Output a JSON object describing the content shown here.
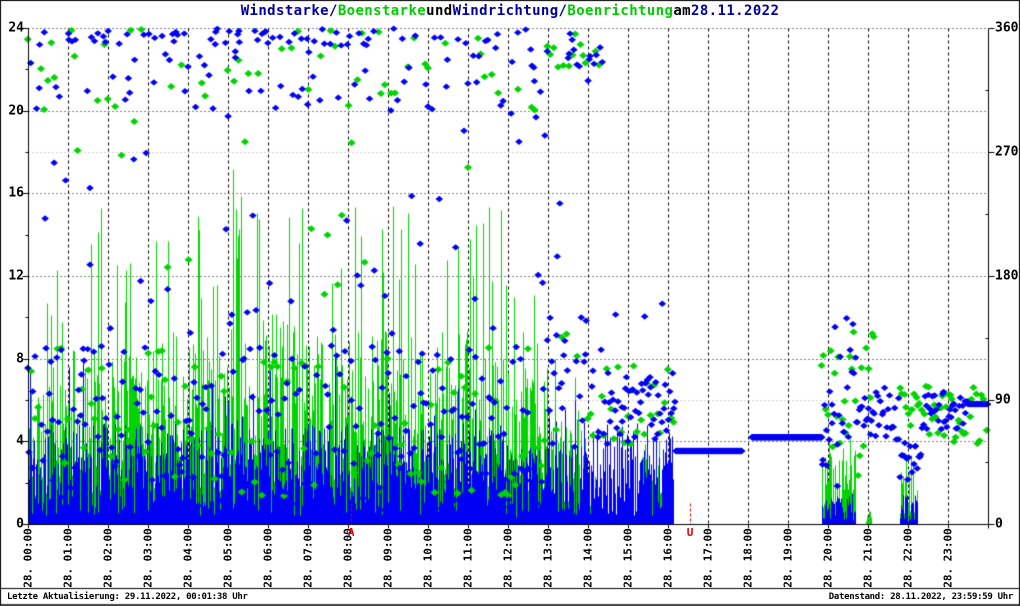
{
  "title": {
    "parts": [
      {
        "text": "Windstarke/",
        "color": "#0000a0"
      },
      {
        "text": "Boenstarke",
        "color": "#00cc00"
      },
      {
        "text": " und ",
        "color": "#000000"
      },
      {
        "text": "Windrichtung/",
        "color": "#0000a0"
      },
      {
        "text": "Boenrichtung",
        "color": "#00cc00"
      },
      {
        "text": " am ",
        "color": "#000000"
      },
      {
        "text": "28.11.2022",
        "color": "#0000a0"
      }
    ]
  },
  "footer": {
    "left": "Letzte Aktualisierung: 29.11.2022, 00:01:38 Uhr",
    "right": "Datenstand: 28.11.2022, 23:59:59 Uhr"
  },
  "markers": {
    "sunrise": {
      "label": "A",
      "time_hours": 8.08,
      "color": "#e00000"
    },
    "sunset": {
      "label": "U",
      "time_hours": 16.55,
      "color": "#e00000"
    }
  },
  "colors": {
    "wind_blue": "#0000f4",
    "gust_green": "#00d400",
    "grid_black": "#000000",
    "grid_gray": "#aaaaaa",
    "axis": "#000000",
    "red": "#e00000",
    "background": "#ffffff"
  },
  "chart_data": {
    "type": "composite",
    "date": "28.11.2022",
    "x_axis": {
      "range_hours": [
        0,
        24
      ],
      "tick_interval_hours": 1,
      "labels": [
        "28. 00:00",
        "28. 01:00",
        "28. 02:00",
        "28. 03:00",
        "28. 04:00",
        "28. 05:00",
        "28. 06:00",
        "28. 07:00",
        "28. 08:00",
        "28. 09:00",
        "28. 10:00",
        "28. 11:00",
        "28. 12:00",
        "28. 13:00",
        "28. 14:00",
        "28. 15:00",
        "28. 16:00",
        "28. 17:00",
        "28. 18:00",
        "28. 19:00",
        "28. 20:00",
        "28. 21:00",
        "28. 22:00",
        "28. 23:00"
      ]
    },
    "y_left": {
      "lim": [
        0,
        24
      ],
      "ticks": [
        0,
        4,
        8,
        12,
        16,
        20,
        24
      ],
      "minor_step": 2
    },
    "y_right": {
      "lim": [
        0,
        360
      ],
      "ticks": [
        0,
        90,
        180,
        270,
        360
      ],
      "minor_step": 45
    },
    "grid": {
      "vertical_dashed_hours": [
        1,
        2,
        3,
        4,
        5,
        6,
        7,
        8,
        9,
        10,
        11,
        12,
        13,
        14,
        15,
        16,
        17,
        18,
        19,
        20,
        21,
        22,
        23
      ],
      "horizontal_dotted_left_values": [
        4,
        8,
        12,
        16,
        20,
        24
      ],
      "horizontal_dotted_right_values": [
        90,
        270
      ]
    },
    "series": [
      {
        "name": "Boenstarke",
        "type": "bar",
        "axis": "left",
        "color": "#00d400",
        "segments": [
          {
            "from": 0,
            "to": 1,
            "max": 12.7,
            "typ": 4.5
          },
          {
            "from": 1,
            "to": 2,
            "max": 15.8,
            "typ": 5.0
          },
          {
            "from": 2,
            "to": 3,
            "max": 13.5,
            "typ": 5.0
          },
          {
            "from": 3,
            "to": 4,
            "max": 15.5,
            "typ": 5.5
          },
          {
            "from": 4,
            "to": 5,
            "max": 15.0,
            "typ": 5.5
          },
          {
            "from": 5,
            "to": 6,
            "max": 17.7,
            "typ": 6.0
          },
          {
            "from": 6,
            "to": 7,
            "max": 15.5,
            "typ": 6.0
          },
          {
            "from": 7,
            "to": 8,
            "max": 14.5,
            "typ": 5.5
          },
          {
            "from": 8,
            "to": 9,
            "max": 15.5,
            "typ": 5.5
          },
          {
            "from": 9,
            "to": 10,
            "max": 15.5,
            "typ": 5.5
          },
          {
            "from": 10,
            "to": 11,
            "max": 15.7,
            "typ": 5.5
          },
          {
            "from": 11,
            "to": 12,
            "max": 15.5,
            "typ": 5.0
          },
          {
            "from": 12,
            "to": 13,
            "max": 12.0,
            "typ": 4.5
          },
          {
            "from": 13,
            "to": 14,
            "max": 8.0,
            "typ": 3.5
          },
          {
            "from": 14,
            "to": 14.2,
            "max": 2.5,
            "typ": 1.5
          },
          {
            "from": 15.3,
            "to": 16.15,
            "max": 4.2,
            "typ": 2.0
          },
          {
            "from": 19.85,
            "to": 20.7,
            "max": 4.2,
            "typ": 2.0
          },
          {
            "from": 20.95,
            "to": 21.1,
            "max": 0.8,
            "typ": 0.5
          },
          {
            "from": 21.8,
            "to": 22.25,
            "max": 3.5,
            "typ": 1.5
          }
        ]
      },
      {
        "name": "Windstarke",
        "type": "impulse",
        "axis": "left",
        "color": "#0000f4",
        "segments": [
          {
            "from": 0,
            "to": 12,
            "max": 8.3,
            "typ": 2.8
          },
          {
            "from": 12,
            "to": 13.9,
            "max": 6.0,
            "typ": 2.2
          },
          {
            "from": 13.9,
            "to": 16.15,
            "max": 5.2,
            "typ": 2.8
          },
          {
            "from": 19.85,
            "to": 20.7,
            "max": 2.0,
            "typ": 0.8
          },
          {
            "from": 21.8,
            "to": 22.25,
            "max": 2.2,
            "typ": 0.8
          }
        ]
      },
      {
        "name": "Boenrichtung",
        "type": "scatter",
        "marker": "diamond",
        "axis": "right",
        "color": "#00d400",
        "segments": [
          {
            "from": 0,
            "to": 13,
            "step_min": 5,
            "clusters": [
              {
                "min": 20,
                "max": 130,
                "w": 0.6
              },
              {
                "min": 300,
                "max": 360,
                "w": 0.3
              },
              {
                "min": 130,
                "max": 300,
                "w": 0.1
              }
            ]
          },
          {
            "from": 13,
            "to": 14.4,
            "step_min": 4,
            "clusters": [
              {
                "min": 60,
                "max": 150,
                "w": 0.5
              },
              {
                "min": 330,
                "max": 360,
                "w": 0.5
              }
            ]
          },
          {
            "from": 14.4,
            "to": 16.2,
            "step_min": 5,
            "clusters": [
              {
                "min": 55,
                "max": 115,
                "w": 1
              }
            ]
          },
          {
            "from": 19.85,
            "to": 21.2,
            "step_min": 3,
            "clusters": [
              {
                "min": 30,
                "max": 140,
                "w": 1
              }
            ]
          },
          {
            "from": 21.8,
            "to": 24,
            "step_min": 3,
            "clusters": [
              {
                "min": 55,
                "max": 100,
                "w": 1
              }
            ]
          }
        ]
      },
      {
        "name": "Windrichtung",
        "type": "scatter",
        "marker": "diamond",
        "axis": "right",
        "color": "#0000f4",
        "segments": [
          {
            "from": 0,
            "to": 13,
            "step_min": 2,
            "clusters": [
              {
                "min": 5,
                "max": 130,
                "w": 0.6
              },
              {
                "min": 300,
                "max": 360,
                "w": 0.2
              },
              {
                "min": 348,
                "max": 360,
                "w": 0.1
              },
              {
                "min": 130,
                "max": 300,
                "w": 0.1
              }
            ]
          },
          {
            "from": 13,
            "to": 14.4,
            "step_min": 2,
            "clusters": [
              {
                "min": 55,
                "max": 150,
                "w": 0.55
              },
              {
                "min": 320,
                "max": 360,
                "w": 0.4
              },
              {
                "min": 150,
                "max": 300,
                "w": 0.05
              }
            ]
          },
          {
            "from": 14.4,
            "to": 16.2,
            "step_min": 2,
            "clusters": [
              {
                "min": 55,
                "max": 110,
                "w": 0.95
              },
              {
                "min": 110,
                "max": 160,
                "w": 0.05
              }
            ]
          },
          {
            "from": 16.2,
            "to": 17.85,
            "step_min": 0.5,
            "flat": 53
          },
          {
            "from": 18.1,
            "to": 19.85,
            "step_min": 0.5,
            "flat": 63
          },
          {
            "from": 19.85,
            "to": 20.75,
            "step_min": 2,
            "clusters": [
              {
                "min": 25,
                "max": 150,
                "w": 1
              }
            ]
          },
          {
            "from": 20.75,
            "to": 21.8,
            "step_min": 2,
            "clusters": [
              {
                "min": 60,
                "max": 100,
                "w": 1
              }
            ]
          },
          {
            "from": 21.8,
            "to": 22.35,
            "step_min": 2,
            "clusters": [
              {
                "min": 28,
                "max": 62,
                "w": 1
              }
            ]
          },
          {
            "from": 22.35,
            "to": 23.5,
            "step_min": 2,
            "clusters": [
              {
                "min": 68,
                "max": 96,
                "w": 1
              }
            ]
          },
          {
            "from": 23.5,
            "to": 24,
            "step_min": 0.7,
            "flat": 87
          }
        ]
      }
    ],
    "sun_markers": [
      {
        "label": "A",
        "time_hours": 8.08
      },
      {
        "label": "U",
        "time_hours": 16.55
      }
    ]
  }
}
